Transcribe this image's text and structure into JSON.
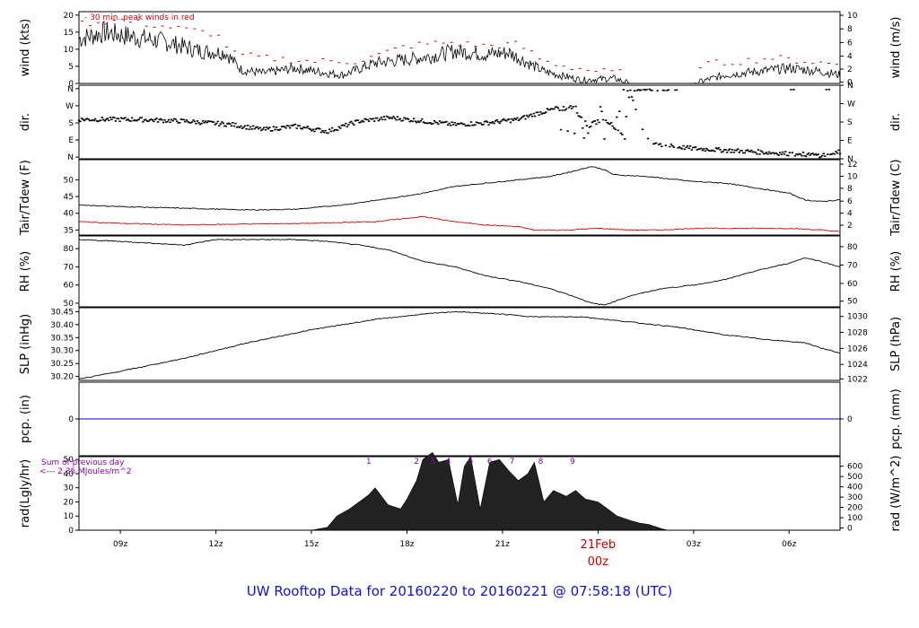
{
  "colors": {
    "line": "#000000",
    "dew": "#e00000",
    "peak": "#e00000",
    "pcp": "#0000cc",
    "title": "#1212c8",
    "solar_note": "#8800aa",
    "date": "#cc0000"
  },
  "title": "UW Rooftop Data for 20160220  to  20160221 @ 07:58:18  (UTC)",
  "chart_data": {
    "type": "line",
    "x_axis": {
      "unit": "hour_utc_from_20160220_00z",
      "range": [
        7.7,
        31.6
      ],
      "ticks": [
        {
          "x": 9,
          "label": "09z"
        },
        {
          "x": 12,
          "label": "12z"
        },
        {
          "x": 15,
          "label": "15z"
        },
        {
          "x": 18,
          "label": "18z"
        },
        {
          "x": 21,
          "label": "21z"
        },
        {
          "x": 27,
          "label": "03z"
        },
        {
          "x": 30,
          "label": "06z"
        }
      ],
      "date_marker": {
        "x": 24,
        "date": "21Feb",
        "hour": "00z"
      }
    },
    "panels": [
      {
        "id": "wind",
        "ylabel_left": "wind (kts)",
        "ylabel_right": "wind (m/s)",
        "ylim": [
          0,
          21
        ],
        "yticks": [
          "0",
          "5",
          "10",
          "15",
          "20"
        ],
        "right_ticks": [
          "0",
          "2",
          "4",
          "6",
          "8",
          "10"
        ],
        "annotation": "- 30 min. peak winds in red",
        "series": [
          {
            "style": "noisy",
            "x": [
              7.7,
              8.5,
              9.5,
              10.5,
              11.5,
              12.3,
              12.8,
              13.5,
              14.5,
              15.5,
              16.0,
              17.0,
              18.0,
              18.8,
              19.5,
              20.5,
              21.2,
              21.8,
              22.3,
              23.0,
              23.5,
              24.5,
              25.0,
              27.0,
              28.0,
              29.0,
              30.0,
              31.0,
              31.6
            ],
            "y": [
              13,
              15,
              13.5,
              12,
              9.5,
              9,
              4,
              3,
              4.5,
              3,
              2.5,
              6,
              7,
              8,
              9.5,
              8.5,
              9,
              6,
              3.5,
              2,
              1,
              1.5,
              0,
              0,
              2.5,
              3.5,
              4.5,
              3.5,
              2.5
            ]
          },
          {
            "style": "dashes",
            "x": [
              7.7,
              9.0,
              10.5,
              12.0,
              12.6,
              13.5,
              15.0,
              16.5,
              18.0,
              19.2,
              20.5,
              21.5,
              22.3,
              23.0,
              24.0,
              25.0,
              27.2,
              28.5,
              29.5,
              30.5,
              31.6
            ],
            "y": [
              17.5,
              18.5,
              16.5,
              14.5,
              8.5,
              7.5,
              6.5,
              6.5,
              11,
              12,
              11,
              11.5,
              6.5,
              5,
              3.5,
              3,
              5.5,
              6.5,
              7.5,
              6.5,
              5.5
            ]
          }
        ]
      },
      {
        "id": "dir",
        "ylabel_left": "dir.",
        "ylabel_right": "dir.",
        "ylim": [
          -0.1,
          4.2
        ],
        "yticks": [
          "N",
          "E",
          "S",
          "W",
          "N"
        ],
        "right_ticks": [
          "N",
          "E",
          "S",
          "W",
          "N"
        ],
        "series": [
          {
            "style": "scatter",
            "x": [
              7.7,
              9.5,
              11.0,
              12.5,
              13.5,
              14.5,
              15.5,
              16.5,
              17.5,
              18.5,
              19.5,
              20.5,
              21.5,
              22.0,
              22.6,
              23.2,
              23.7,
              24.2,
              24.8,
              25.0,
              25.5,
              26.0,
              27.0,
              28.0,
              29.0,
              30.0,
              31.0,
              31.6
            ],
            "y": [
              2.2,
              2.2,
              2.1,
              1.9,
              1.6,
              1.8,
              1.5,
              2.1,
              2.3,
              2.1,
              1.9,
              2.0,
              2.2,
              2.5,
              2.8,
              2.9,
              1.8,
              2.3,
              1.2,
              3.9,
              1.0,
              0.7,
              0.5,
              0.4,
              0.3,
              0.2,
              0.1,
              0.3
            ]
          }
        ]
      },
      {
        "id": "temp",
        "ylabel_left": "Tair/Tdew (F)",
        "ylabel_right": "Tair/Tdew (C)",
        "ylim": [
          33.5,
          56
        ],
        "yticks": [
          "35",
          "40",
          "45",
          "50"
        ],
        "right_ticks": [
          "2",
          "4",
          "6",
          "8",
          "10",
          "12"
        ],
        "series": [
          {
            "name": "Tair",
            "style": "smooth",
            "x": [
              7.7,
              9.0,
              11.0,
              13.0,
              14.5,
              16.0,
              17.5,
              18.5,
              19.5,
              20.5,
              21.5,
              22.5,
              23.2,
              23.8,
              24.2,
              24.5,
              25.5,
              26.0,
              27.0,
              28.0,
              29.0,
              30.0,
              30.5,
              31.0,
              31.6
            ],
            "y": [
              42.5,
              42.0,
              41.5,
              41.0,
              41.2,
              42.5,
              44.5,
              46.0,
              48.0,
              49.0,
              50.0,
              51.0,
              52.5,
              54.0,
              53.0,
              51.5,
              51.0,
              50.5,
              49.5,
              49.0,
              47.5,
              46.0,
              44.0,
              43.5,
              44.0
            ]
          },
          {
            "name": "Tdew",
            "style": "smooth",
            "color": "#e00000",
            "x": [
              7.7,
              9.0,
              11.0,
              13.0,
              15.0,
              17.0,
              18.5,
              19.5,
              20.5,
              21.5,
              22.0,
              23.0,
              24.0,
              25.0,
              26.0,
              27.0,
              28.0,
              29.0,
              30.0,
              31.0,
              31.6
            ],
            "y": [
              37.5,
              37.0,
              36.5,
              36.8,
              37.0,
              37.5,
              39.0,
              37.5,
              36.5,
              36.0,
              35.0,
              35.0,
              35.5,
              35.0,
              35.0,
              35.5,
              35.5,
              35.5,
              35.5,
              35.0,
              34.5
            ]
          }
        ]
      },
      {
        "id": "rh",
        "ylabel_left": "RH (%)",
        "ylabel_right": "RH (%)",
        "ylim": [
          48,
          87
        ],
        "yticks": [
          "50",
          "60",
          "70",
          "80"
        ],
        "right_ticks": [
          "50",
          "60",
          "70",
          "80"
        ],
        "series": [
          {
            "style": "smooth",
            "x": [
              7.7,
              9.0,
              10.0,
              11.0,
              12.0,
              13.0,
              14.5,
              15.5,
              16.5,
              17.5,
              18.5,
              19.5,
              20.5,
              21.5,
              22.5,
              23.2,
              23.8,
              24.2,
              25.0,
              26.0,
              27.0,
              28.0,
              29.0,
              30.0,
              30.5,
              31.0,
              31.6
            ],
            "y": [
              85,
              84,
              83,
              82,
              85,
              85,
              85,
              84,
              82,
              79,
              73,
              70,
              65,
              62,
              58,
              54,
              50,
              49,
              54,
              58,
              60,
              63,
              68,
              72,
              75,
              73,
              70
            ]
          }
        ]
      },
      {
        "id": "slp",
        "ylabel_left": "SLP (inHg)",
        "ylabel_right": "SLP (hPa)",
        "ylim": [
          30.185,
          30.465
        ],
        "yticks": [
          "30.20",
          "30.25",
          "30.30",
          "30.35",
          "30.40",
          "30.45"
        ],
        "right_ticks": [
          "1022",
          "1024",
          "1026",
          "1028",
          "1030"
        ],
        "series": [
          {
            "style": "smooth",
            "x": [
              7.7,
              9.0,
              11.0,
              13.0,
              15.0,
              17.0,
              18.5,
              19.5,
              21.0,
              22.0,
              23.5,
              25.0,
              26.5,
              28.0,
              29.5,
              30.5,
              31.0,
              31.6
            ],
            "y": [
              30.19,
              30.22,
              30.27,
              30.33,
              30.38,
              30.42,
              30.44,
              30.45,
              30.44,
              30.43,
              30.43,
              30.41,
              30.39,
              30.36,
              30.34,
              30.33,
              30.31,
              30.29
            ]
          }
        ]
      },
      {
        "id": "pcp",
        "ylabel_left": "pcp. (in)",
        "ylabel_right": "pcp. (mm)",
        "ylim": [
          -0.5,
          0.5
        ],
        "yticks": [
          "0"
        ],
        "right_ticks": [
          "0"
        ],
        "series": [
          {
            "style": "flat",
            "color": "#0000cc",
            "x": [
              7.7,
              31.6
            ],
            "y": [
              0,
              0
            ]
          }
        ]
      },
      {
        "id": "rad",
        "ylabel_left": "rad(Lgly/hr)",
        "ylabel_right": "rad (W/m^2)",
        "ylim": [
          0,
          52
        ],
        "yticks": [
          "0",
          "10",
          "20",
          "30",
          "40",
          "50"
        ],
        "right_ticks": [
          "0",
          "100",
          "200",
          "300",
          "400",
          "500",
          "600"
        ],
        "note": [
          "Sum of previous day",
          "<--- 2.35 MJoules/m^2"
        ],
        "hour_marks": [
          {
            "x": 16.8,
            "label": "1"
          },
          {
            "x": 18.3,
            "label": "2"
          },
          {
            "x": 18.8,
            "label": "3"
          },
          {
            "x": 19.3,
            "label": "4"
          },
          {
            "x": 20.0,
            "label": "5"
          },
          {
            "x": 20.6,
            "label": "6"
          },
          {
            "x": 21.3,
            "label": "7"
          },
          {
            "x": 22.2,
            "label": "8"
          },
          {
            "x": 23.2,
            "label": "9"
          }
        ],
        "series": [
          {
            "style": "area",
            "x": [
              15.0,
              15.5,
              15.8,
              16.2,
              16.8,
              17.0,
              17.4,
              17.8,
              18.0,
              18.3,
              18.5,
              18.8,
              19.0,
              19.3,
              19.6,
              19.8,
              20.0,
              20.3,
              20.6,
              20.9,
              21.2,
              21.5,
              21.8,
              22.0,
              22.3,
              22.6,
              23.0,
              23.3,
              23.6,
              24.0,
              24.3,
              24.6,
              25.0,
              25.3,
              25.6,
              26.0,
              26.2
            ],
            "y": [
              0,
              2,
              10,
              15,
              25,
              30,
              18,
              15,
              22,
              35,
              50,
              55,
              48,
              50,
              18,
              45,
              52,
              15,
              48,
              50,
              42,
              35,
              40,
              48,
              20,
              28,
              24,
              28,
              22,
              20,
              15,
              10,
              7,
              5,
              4,
              1,
              0
            ]
          }
        ]
      }
    ]
  }
}
